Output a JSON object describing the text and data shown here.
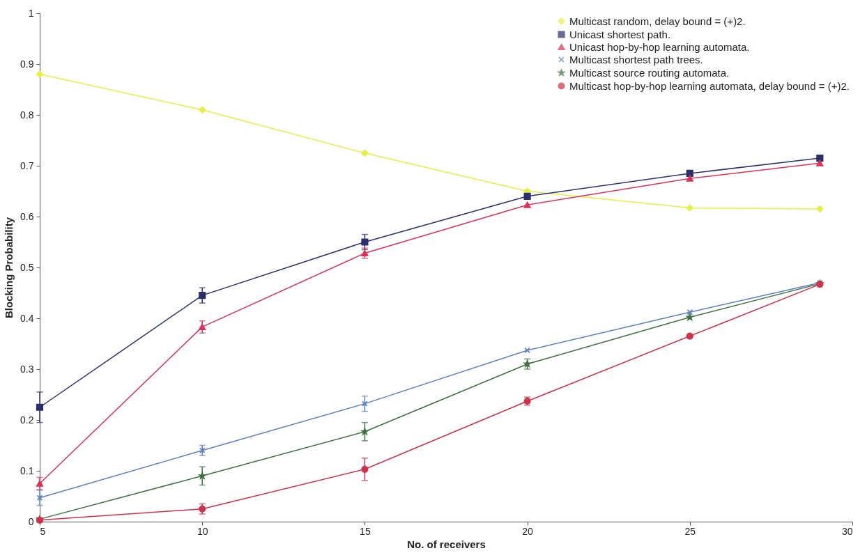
{
  "chart_data": {
    "type": "line",
    "xlabel": "No. of receivers",
    "ylabel": "Blocking Probability",
    "x": [
      5,
      10,
      15,
      20,
      25,
      29
    ],
    "xlim": [
      5,
      30
    ],
    "xticks": [
      5,
      10,
      15,
      20,
      25,
      30
    ],
    "ylim": [
      0,
      1
    ],
    "yticks": [
      0,
      0.1,
      0.2,
      0.3,
      0.4,
      0.5,
      0.6,
      0.7,
      0.8,
      0.9,
      1
    ],
    "grid": false,
    "legend": "top right",
    "series": [
      {
        "name": "Multicast random, delay bound = (+)2.",
        "color": "#e6f040",
        "marker": "diamond",
        "values": [
          0.88,
          0.81,
          0.725,
          0.65,
          0.617,
          0.615
        ]
      },
      {
        "name": "Unicast shortest path.",
        "color": "#2b2f6e",
        "marker": "square",
        "values": [
          0.225,
          0.445,
          0.55,
          0.64,
          0.685,
          0.715
        ],
        "errors": [
          0.03,
          0.015,
          0.015,
          null,
          null,
          null
        ]
      },
      {
        "name": "Unicast hop-by-hop learning automata.",
        "color": "#e0305a",
        "marker": "triangle",
        "values": [
          0.075,
          0.383,
          0.528,
          0.623,
          0.675,
          0.705
        ],
        "errors": [
          0.012,
          0.012,
          0.01,
          null,
          null,
          null
        ]
      },
      {
        "name": "Multicast shortest path trees.",
        "color": "#5b7fc0",
        "marker": "cross",
        "values": [
          0.047,
          0.14,
          0.232,
          0.337,
          0.412,
          0.47
        ],
        "errors": [
          0.015,
          0.01,
          0.015,
          null,
          null,
          null
        ]
      },
      {
        "name": "Multicast source routing automata.",
        "color": "#3e7040",
        "marker": "star",
        "values": [
          0.005,
          0.09,
          0.177,
          0.31,
          0.402,
          0.468
        ],
        "errors": [
          null,
          0.018,
          0.018,
          0.01,
          null,
          null
        ]
      },
      {
        "name": "Multicast hop-by-hop learning automata, delay bound = (+)2.",
        "color": "#d0304a",
        "marker": "circle",
        "values": [
          0.003,
          0.025,
          0.103,
          0.237,
          0.365,
          0.467
        ],
        "errors": [
          null,
          0.01,
          0.022,
          0.008,
          null,
          null
        ]
      }
    ]
  }
}
